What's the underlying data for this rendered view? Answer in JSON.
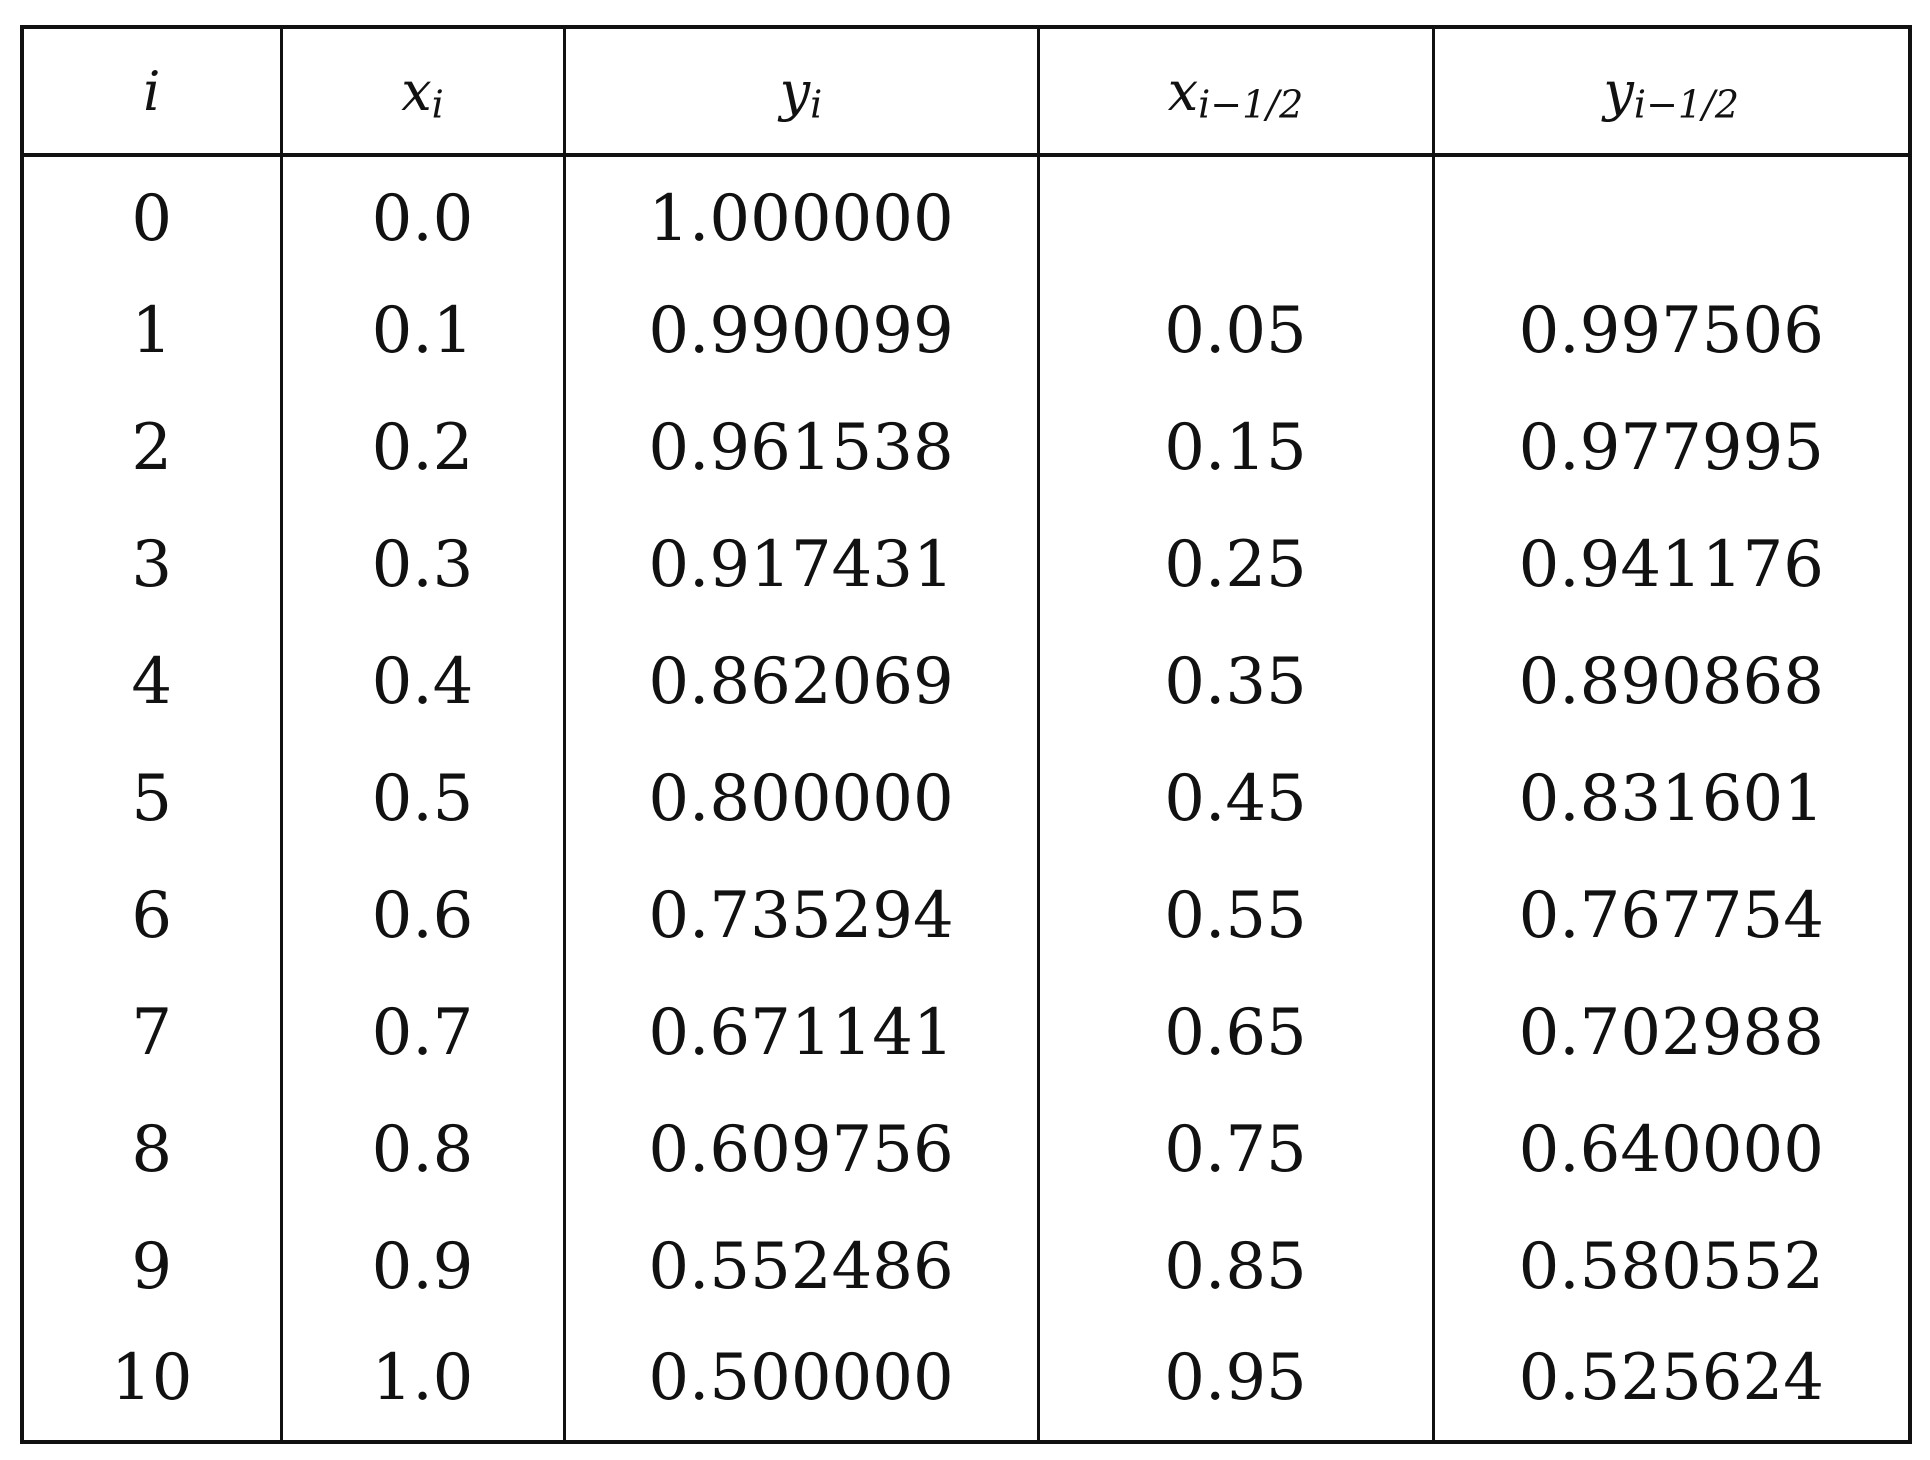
{
  "table": {
    "headers": [
      {
        "main": "i",
        "sub": ""
      },
      {
        "main": "x",
        "sub": "i"
      },
      {
        "main": "y",
        "sub": "i"
      },
      {
        "main": "x",
        "sub": "i−1/2"
      },
      {
        "main": "y",
        "sub": "i−1/2"
      }
    ],
    "rows": [
      [
        "0",
        "0.0",
        "1.000000",
        "",
        ""
      ],
      [
        "1",
        "0.1",
        "0.990099",
        "0.05",
        "0.997506"
      ],
      [
        "2",
        "0.2",
        "0.961538",
        "0.15",
        "0.977995"
      ],
      [
        "3",
        "0.3",
        "0.917431",
        "0.25",
        "0.941176"
      ],
      [
        "4",
        "0.4",
        "0.862069",
        "0.35",
        "0.890868"
      ],
      [
        "5",
        "0.5",
        "0.800000",
        "0.45",
        "0.831601"
      ],
      [
        "6",
        "0.6",
        "0.735294",
        "0.55",
        "0.767754"
      ],
      [
        "7",
        "0.7",
        "0.671141",
        "0.65",
        "0.702988"
      ],
      [
        "8",
        "0.8",
        "0.609756",
        "0.75",
        "0.640000"
      ],
      [
        "9",
        "0.9",
        "0.552486",
        "0.85",
        "0.580552"
      ],
      [
        "10",
        "1.0",
        "0.500000",
        "0.95",
        "0.525624"
      ]
    ]
  }
}
